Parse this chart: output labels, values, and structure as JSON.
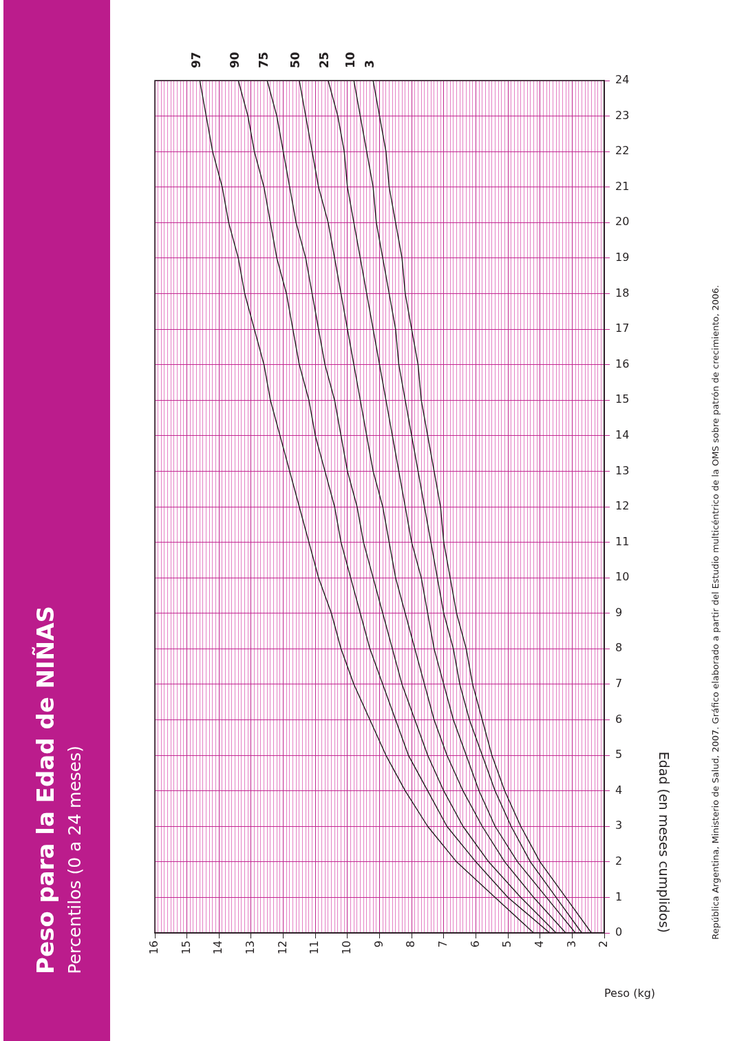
{
  "chart_data": {
    "type": "line",
    "title": "Peso para la Edad de NIÑAS",
    "subtitle": "Percentilos (0 a 24 meses)",
    "xlabel": "Peso (kg)",
    "ylabel": "Edad (en meses cumplidos)",
    "annotations": [
      "República Argentina, Ministerio de Salud, 2007. Gráfico elaborado a partir del Estudio multicéntrico de la OMS sobre patrón de crecimiento, 2006."
    ],
    "series": [
      {
        "name": "97",
        "color": "#231f20",
        "x": [
          4.2,
          5.4,
          6.6,
          7.5,
          8.2,
          8.8,
          9.3,
          9.8,
          10.2,
          10.5,
          10.9,
          11.2,
          11.5,
          11.8,
          12.1,
          12.4,
          12.6,
          12.9,
          13.2,
          13.4,
          13.7,
          13.9,
          14.2,
          14.4,
          14.6
        ],
        "values": [
          0,
          1,
          2,
          3,
          4,
          5,
          6,
          7,
          8,
          9,
          10,
          11,
          12,
          13,
          14,
          15,
          16,
          17,
          18,
          19,
          20,
          21,
          22,
          23,
          24
        ]
      },
      {
        "name": "90",
        "color": "#231f20",
        "x": [
          3.7,
          5.0,
          6.0,
          6.9,
          7.5,
          8.1,
          8.5,
          8.9,
          9.3,
          9.6,
          9.9,
          10.2,
          10.4,
          10.7,
          11.0,
          11.2,
          11.5,
          11.7,
          11.9,
          12.2,
          12.4,
          12.6,
          12.9,
          13.1,
          13.4
        ],
        "values": [
          0,
          1,
          2,
          3,
          4,
          5,
          6,
          7,
          8,
          9,
          10,
          11,
          12,
          13,
          14,
          15,
          16,
          17,
          18,
          19,
          20,
          21,
          22,
          23,
          24
        ]
      },
      {
        "name": "75",
        "color": "#231f20",
        "x": [
          3.5,
          4.6,
          5.6,
          6.4,
          7.0,
          7.5,
          7.9,
          8.3,
          8.6,
          8.9,
          9.2,
          9.5,
          9.7,
          10.0,
          10.2,
          10.4,
          10.7,
          10.9,
          11.1,
          11.3,
          11.6,
          11.8,
          12.0,
          12.2,
          12.5
        ],
        "values": [
          0,
          1,
          2,
          3,
          4,
          5,
          6,
          7,
          8,
          9,
          10,
          11,
          12,
          13,
          14,
          15,
          16,
          17,
          18,
          19,
          20,
          21,
          22,
          23,
          24
        ]
      },
      {
        "name": "50",
        "color": "#231f20",
        "x": [
          3.2,
          4.2,
          5.1,
          5.8,
          6.4,
          6.9,
          7.3,
          7.6,
          7.9,
          8.2,
          8.5,
          8.7,
          8.9,
          9.2,
          9.4,
          9.6,
          9.8,
          10.0,
          10.2,
          10.4,
          10.6,
          10.9,
          11.1,
          11.3,
          11.5
        ],
        "values": [
          0,
          1,
          2,
          3,
          4,
          5,
          6,
          7,
          8,
          9,
          10,
          11,
          12,
          13,
          14,
          15,
          16,
          17,
          18,
          19,
          20,
          21,
          22,
          23,
          24
        ]
      },
      {
        "name": "25",
        "color": "#231f20",
        "x": [
          2.9,
          3.8,
          4.7,
          5.4,
          5.9,
          6.3,
          6.7,
          7.0,
          7.3,
          7.5,
          7.7,
          8.0,
          8.2,
          8.4,
          8.6,
          8.8,
          9.0,
          9.2,
          9.4,
          9.6,
          9.8,
          10.0,
          10.1,
          10.3,
          10.6
        ],
        "values": [
          0,
          1,
          2,
          3,
          4,
          5,
          6,
          7,
          8,
          9,
          10,
          11,
          12,
          13,
          14,
          15,
          16,
          17,
          18,
          19,
          20,
          21,
          22,
          23,
          24
        ]
      },
      {
        "name": "10",
        "color": "#231f20",
        "x": [
          2.7,
          3.5,
          4.3,
          4.9,
          5.4,
          5.8,
          6.2,
          6.5,
          6.7,
          7.0,
          7.2,
          7.4,
          7.6,
          7.8,
          8.0,
          8.2,
          8.4,
          8.5,
          8.7,
          8.9,
          9.1,
          9.2,
          9.4,
          9.6,
          9.8
        ],
        "values": [
          0,
          1,
          2,
          3,
          4,
          5,
          6,
          7,
          8,
          9,
          10,
          11,
          12,
          13,
          14,
          15,
          16,
          17,
          18,
          19,
          20,
          21,
          22,
          23,
          24
        ]
      },
      {
        "name": "3",
        "color": "#231f20",
        "x": [
          2.4,
          3.2,
          4.0,
          4.6,
          5.1,
          5.5,
          5.8,
          6.1,
          6.3,
          6.6,
          6.8,
          7.0,
          7.1,
          7.3,
          7.5,
          7.7,
          7.8,
          8.0,
          8.2,
          8.3,
          8.5,
          8.7,
          8.8,
          9.0,
          9.2
        ],
        "values": [
          0,
          1,
          2,
          3,
          4,
          5,
          6,
          7,
          8,
          9,
          10,
          11,
          12,
          13,
          14,
          15,
          16,
          17,
          18,
          19,
          20,
          21,
          22,
          23,
          24
        ]
      }
    ],
    "ylim": [
      0,
      24
    ],
    "yticks": [
      0,
      1,
      2,
      3,
      4,
      5,
      6,
      7,
      8,
      9,
      10,
      11,
      12,
      13,
      14,
      15,
      16,
      17,
      18,
      19,
      20,
      21,
      22,
      23,
      24
    ],
    "xlim": [
      16,
      2
    ],
    "xticks": [
      2,
      {
        "value": 2.1,
        "label": null
      },
      {
        "value": 2.2,
        "label": null
      },
      {
        "value": 2.3,
        "label": null
      },
      {
        "value": 2.4,
        "label": null
      },
      {
        "value": 2.5,
        "label": null
      },
      {
        "value": 2.6,
        "label": null
      },
      {
        "value": 2.7,
        "label": null
      },
      {
        "value": 2.8,
        "label": null
      },
      {
        "value": 2.9,
        "label": null
      },
      3,
      {
        "value": 3.1,
        "label": null
      },
      {
        "value": 3.2,
        "label": null
      },
      {
        "value": 3.3,
        "label": null
      },
      {
        "value": 3.4,
        "label": null
      },
      {
        "value": 3.5,
        "label": null
      },
      {
        "value": 3.6,
        "label": null
      },
      {
        "value": 3.7,
        "label": null
      },
      {
        "value": 3.8,
        "label": null
      },
      {
        "value": 3.9,
        "label": null
      },
      4,
      {
        "value": 4.1,
        "label": null
      },
      {
        "value": 4.2,
        "label": null
      },
      {
        "value": 4.3,
        "label": null
      },
      {
        "value": 4.4,
        "label": null
      },
      {
        "value": 4.5,
        "label": null
      },
      {
        "value": 4.6,
        "label": null
      },
      {
        "value": 4.7,
        "label": null
      },
      {
        "value": 4.8,
        "label": null
      },
      {
        "value": 4.9,
        "label": null
      },
      5,
      {
        "value": 5.1,
        "label": null
      },
      {
        "value": 5.2,
        "label": null
      },
      {
        "value": 5.3,
        "label": null
      },
      {
        "value": 5.4,
        "label": null
      },
      {
        "value": 5.5,
        "label": null
      },
      {
        "value": 5.6,
        "label": null
      },
      {
        "value": 5.7,
        "label": null
      },
      {
        "value": 5.8,
        "label": null
      },
      {
        "value": 5.9,
        "label": null
      },
      6,
      {
        "value": 6.1,
        "label": null
      },
      {
        "value": 6.2,
        "label": null
      },
      {
        "value": 6.3,
        "label": null
      },
      {
        "value": 6.4,
        "label": null
      },
      {
        "value": 6.5,
        "label": null
      },
      {
        "value": 6.6,
        "label": null
      },
      {
        "value": 6.7,
        "label": null
      },
      {
        "value": 6.8,
        "label": null
      },
      {
        "value": 6.9,
        "label": null
      },
      7,
      {
        "value": 7.1,
        "label": null
      },
      {
        "value": 7.2,
        "label": null
      },
      {
        "value": 7.3,
        "label": null
      },
      {
        "value": 7.4,
        "label": null
      },
      {
        "value": 7.5,
        "label": null
      },
      {
        "value": 7.6,
        "label": null
      },
      {
        "value": 7.7,
        "label": null
      },
      {
        "value": 7.8,
        "label": null
      },
      {
        "value": 7.9,
        "label": null
      },
      8,
      {
        "value": 8.1,
        "label": null
      },
      {
        "value": 8.2,
        "label": null
      },
      {
        "value": 8.3,
        "label": null
      },
      {
        "value": 8.4,
        "label": null
      },
      {
        "value": 8.5,
        "label": null
      },
      {
        "value": 8.6,
        "label": null
      },
      {
        "value": 8.7,
        "label": null
      },
      {
        "value": 8.8,
        "label": null
      },
      {
        "value": 8.9,
        "label": null
      },
      9,
      {
        "value": 9.1,
        "label": null
      },
      {
        "value": 9.2,
        "label": null
      },
      {
        "value": 9.3,
        "label": null
      },
      {
        "value": 9.4,
        "label": null
      },
      {
        "value": 9.5,
        "label": null
      },
      {
        "value": 9.6,
        "label": null
      },
      {
        "value": 9.7,
        "label": null
      },
      {
        "value": 9.8,
        "label": null
      },
      {
        "value": 9.9,
        "label": null
      },
      10,
      {
        "value": 10.1,
        "label": null
      },
      {
        "value": 10.2,
        "label": null
      },
      {
        "value": 10.3,
        "label": null
      },
      {
        "value": 10.4,
        "label": null
      },
      {
        "value": 10.5,
        "label": null
      },
      {
        "value": 10.6,
        "label": null
      },
      {
        "value": 10.7,
        "label": null
      },
      {
        "value": 10.8,
        "label": null
      },
      {
        "value": 10.9,
        "label": null
      },
      11,
      {
        "value": 11.1,
        "label": null
      },
      {
        "value": 11.2,
        "label": null
      },
      {
        "value": 11.3,
        "label": null
      },
      {
        "value": 11.4,
        "label": null
      },
      {
        "value": 11.5,
        "label": null
      },
      {
        "value": 11.6,
        "label": null
      },
      {
        "value": 11.7,
        "label": null
      },
      {
        "value": 11.8,
        "label": null
      },
      {
        "value": 11.9,
        "label": null
      },
      12,
      {
        "value": 12.1,
        "label": null
      },
      {
        "value": 12.2,
        "label": null
      },
      {
        "value": 12.3,
        "label": null
      },
      {
        "value": 12.4,
        "label": null
      },
      {
        "value": 12.5,
        "label": null
      },
      {
        "value": 12.6,
        "label": null
      },
      {
        "value": 12.7,
        "label": null
      },
      {
        "value": 12.8,
        "label": null
      },
      {
        "value": 12.9,
        "label": null
      },
      13,
      {
        "value": 13.1,
        "label": null
      },
      {
        "value": 13.2,
        "label": null
      },
      {
        "value": 13.3,
        "label": null
      },
      {
        "value": 13.4,
        "label": null
      },
      {
        "value": 13.5,
        "label": null
      },
      {
        "value": 13.6,
        "label": null
      },
      {
        "value": 13.7,
        "label": null
      },
      {
        "value": 13.8,
        "label": null
      },
      {
        "value": 13.9,
        "label": null
      },
      14,
      {
        "value": 14.1,
        "label": null
      },
      {
        "value": 14.2,
        "label": null
      },
      {
        "value": 14.3,
        "label": null
      },
      {
        "value": 14.4,
        "label": null
      },
      {
        "value": 14.5,
        "label": null
      },
      {
        "value": 14.6,
        "label": null
      },
      {
        "value": 14.7,
        "label": null
      },
      {
        "value": 14.8,
        "label": null
      },
      {
        "value": 14.9,
        "label": null
      },
      15,
      {
        "value": 15.1,
        "label": null
      },
      {
        "value": 15.2,
        "label": null
      },
      {
        "value": 15.3,
        "label": null
      },
      {
        "value": 15.4,
        "label": null
      },
      {
        "value": 15.5,
        "label": null
      },
      {
        "value": 15.6,
        "label": null
      },
      {
        "value": 15.7,
        "label": null
      },
      {
        "value": 15.8,
        "label": null
      },
      {
        "value": 15.9,
        "label": null
      },
      16
    ],
    "grid": true,
    "legend": false,
    "marker": "none",
    "line_style": "solid"
  }
}
